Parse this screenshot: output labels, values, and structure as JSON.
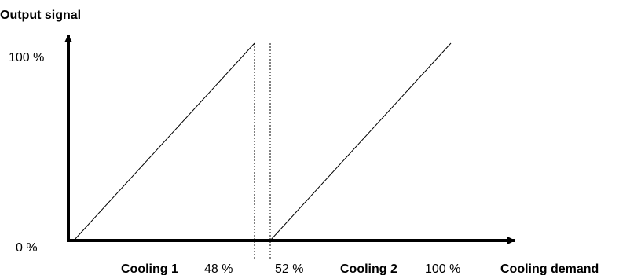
{
  "chart_data": {
    "type": "line",
    "ylabel": "Output signal",
    "xlabel": "Cooling demand",
    "y_ticks": [
      "100 %",
      "0 %"
    ],
    "x_markers": [
      {
        "label": "Cooling 1",
        "bold": true
      },
      {
        "label": "48 %",
        "bold": false
      },
      {
        "label": "52 %",
        "bold": false
      },
      {
        "label": "Cooling 2",
        "bold": true
      },
      {
        "label": "100 %",
        "bold": false
      }
    ],
    "xlim": [
      0,
      100
    ],
    "ylim": [
      0,
      100
    ],
    "series": [
      {
        "x": [
          2,
          48
        ],
        "y": [
          0,
          100
        ]
      },
      {
        "x": [
          52,
          98
        ],
        "y": [
          0,
          100
        ]
      }
    ],
    "reference_lines_x": [
      48,
      52
    ],
    "grid": false,
    "legend": "none"
  }
}
